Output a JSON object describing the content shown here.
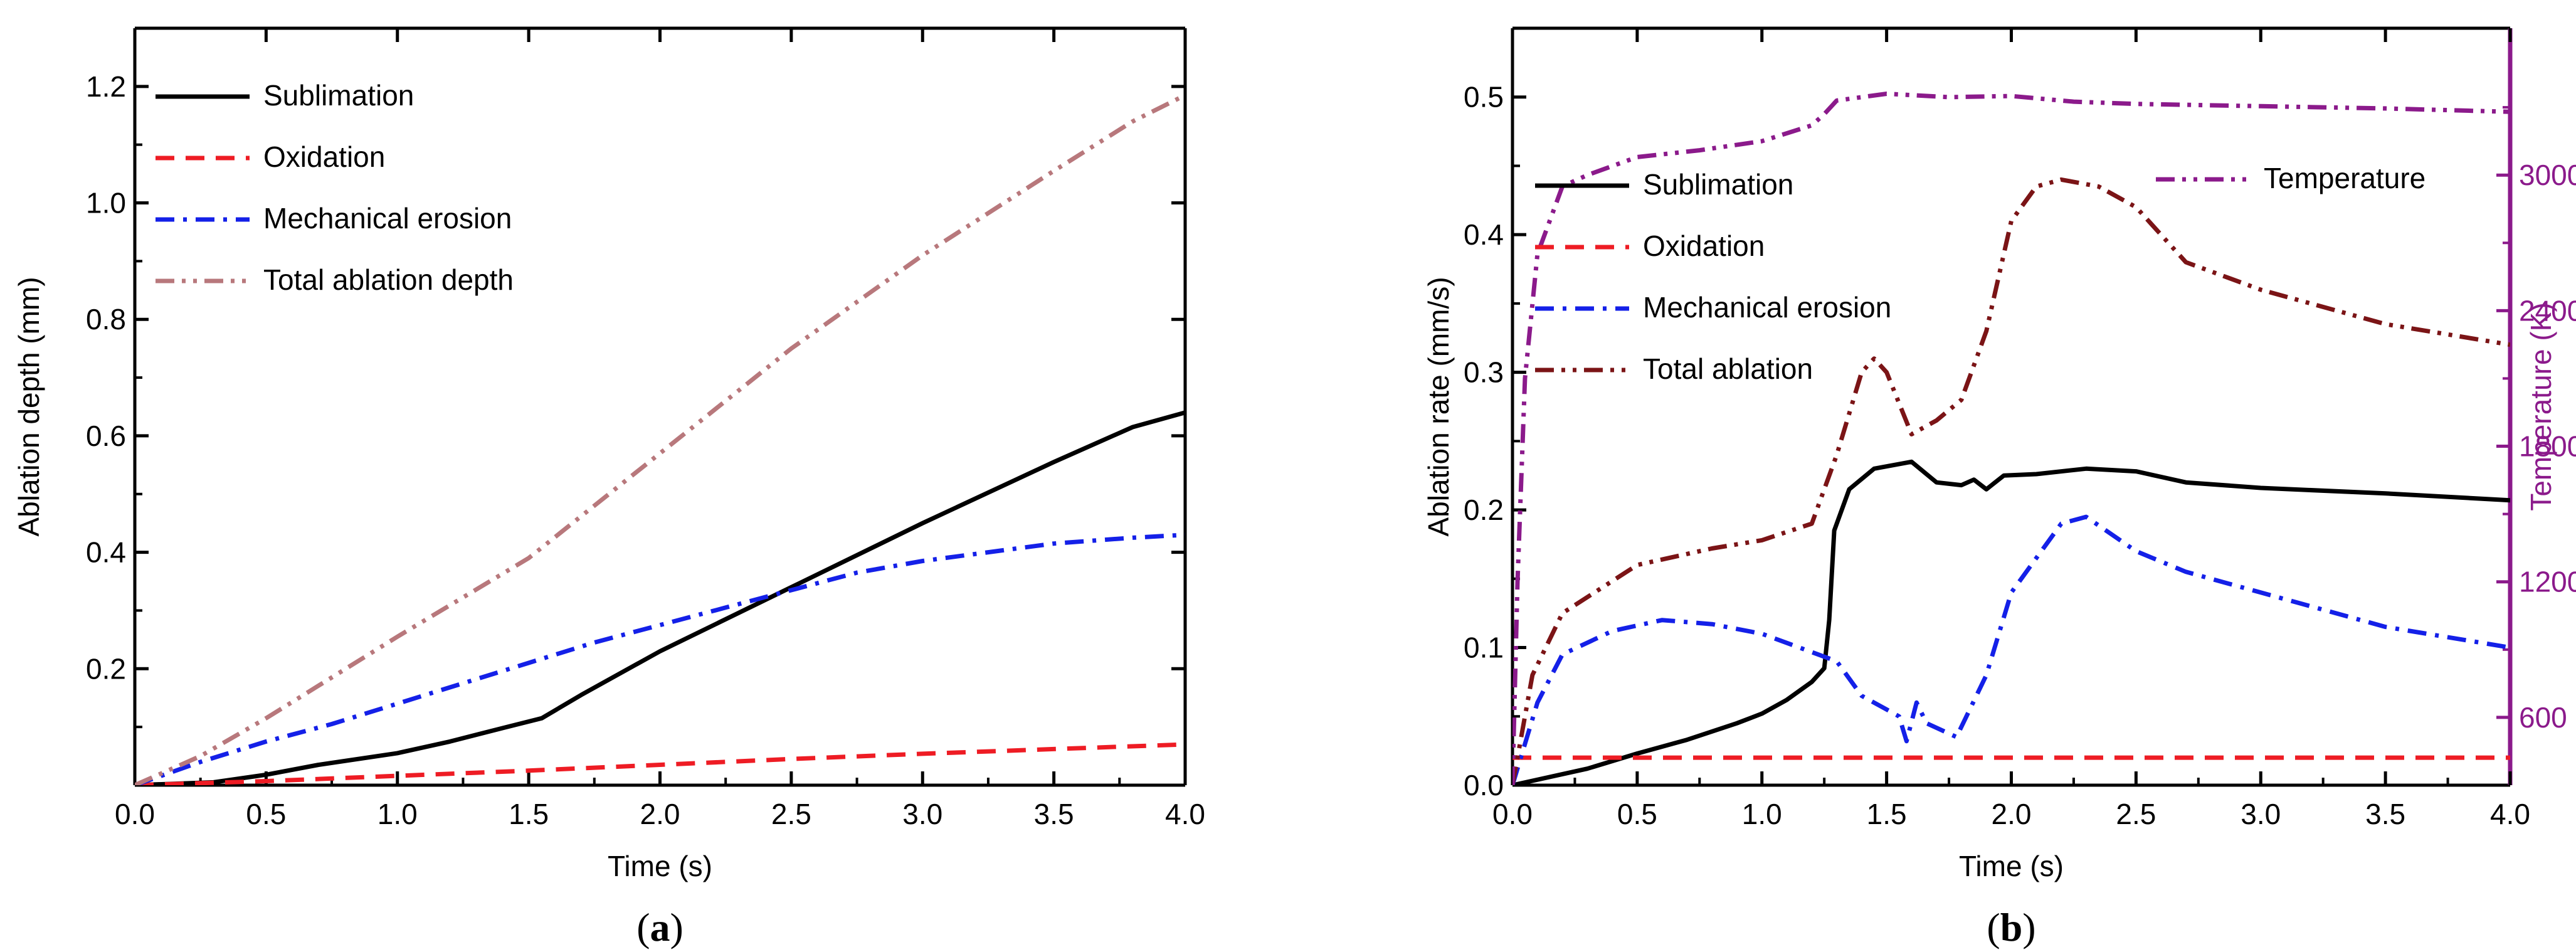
{
  "colors": {
    "axis": "#000000",
    "temperature_axis": "#8B1A8B"
  },
  "chart_data": [
    {
      "type": "line",
      "panel_label": "a",
      "title": "",
      "xlabel": "Time (s)",
      "ylabel": "Ablation depth (mm)",
      "xlim": [
        0,
        4
      ],
      "ylim": [
        0,
        1.3
      ],
      "xticks": [
        "0.0",
        "0.5",
        "1.0",
        "1.5",
        "2.0",
        "2.5",
        "3.0",
        "3.5",
        "4.0"
      ],
      "yticks": [
        "0.2",
        "0.4",
        "0.6",
        "0.8",
        "1.0",
        "1.2"
      ],
      "legend_position": "top-left",
      "series": [
        {
          "name": "Sublimation",
          "color": "#000000",
          "dash": "solid",
          "points": [
            [
              0,
              0
            ],
            [
              0.3,
              0.005
            ],
            [
              0.5,
              0.018
            ],
            [
              0.7,
              0.035
            ],
            [
              1.0,
              0.055
            ],
            [
              1.2,
              0.075
            ],
            [
              1.4,
              0.098
            ],
            [
              1.55,
              0.115
            ],
            [
              1.7,
              0.155
            ],
            [
              2.0,
              0.23
            ],
            [
              2.5,
              0.34
            ],
            [
              3.0,
              0.45
            ],
            [
              3.5,
              0.555
            ],
            [
              3.8,
              0.615
            ],
            [
              4.0,
              0.64
            ]
          ]
        },
        {
          "name": "Oxidation",
          "color": "#EE1C24",
          "dash": "dash",
          "points": [
            [
              0,
              0
            ],
            [
              0.5,
              0.007
            ],
            [
              1.0,
              0.016
            ],
            [
              1.5,
              0.025
            ],
            [
              2.0,
              0.035
            ],
            [
              2.5,
              0.045
            ],
            [
              3.0,
              0.054
            ],
            [
              3.5,
              0.062
            ],
            [
              4.0,
              0.07
            ]
          ]
        },
        {
          "name": "Mechanical erosion",
          "color": "#1420E8",
          "dash": "dashdot",
          "points": [
            [
              0,
              0
            ],
            [
              0.25,
              0.04
            ],
            [
              0.5,
              0.075
            ],
            [
              0.75,
              0.105
            ],
            [
              1.0,
              0.14
            ],
            [
              1.25,
              0.175
            ],
            [
              1.5,
              0.21
            ],
            [
              1.75,
              0.245
            ],
            [
              2.0,
              0.275
            ],
            [
              2.25,
              0.305
            ],
            [
              2.5,
              0.335
            ],
            [
              2.75,
              0.365
            ],
            [
              3.0,
              0.385
            ],
            [
              3.5,
              0.415
            ],
            [
              3.8,
              0.425
            ],
            [
              4.0,
              0.43
            ]
          ]
        },
        {
          "name": "Total ablation depth",
          "color": "#B8787C",
          "dash": "dashdotdot",
          "points": [
            [
              0,
              0
            ],
            [
              0.25,
              0.05
            ],
            [
              0.5,
              0.115
            ],
            [
              1.0,
              0.255
            ],
            [
              1.5,
              0.39
            ],
            [
              2.0,
              0.57
            ],
            [
              2.5,
              0.75
            ],
            [
              3.0,
              0.91
            ],
            [
              3.5,
              1.055
            ],
            [
              3.8,
              1.14
            ],
            [
              4.0,
              1.185
            ]
          ]
        }
      ]
    },
    {
      "type": "line",
      "panel_label": "b",
      "title": "",
      "xlabel": "Time (s)",
      "ylabel": "Ablation rate (mm/s)",
      "y2label": "Temperature (K)",
      "xlim": [
        0,
        4
      ],
      "ylim": [
        0,
        0.55
      ],
      "y2lim": [
        300,
        3650
      ],
      "xticks": [
        "0.0",
        "0.5",
        "1.0",
        "1.5",
        "2.0",
        "2.5",
        "3.0",
        "3.5",
        "4.0"
      ],
      "yticks": [
        "0.0",
        "0.1",
        "0.2",
        "0.3",
        "0.4",
        "0.5"
      ],
      "y2ticks": [
        "600",
        "1200",
        "1800",
        "2400",
        "3000"
      ],
      "legend_position": "top-left",
      "series": [
        {
          "name": "Sublimation",
          "axis": "left",
          "color": "#000000",
          "dash": "solid",
          "points": [
            [
              0,
              0
            ],
            [
              0.3,
              0.012
            ],
            [
              0.5,
              0.023
            ],
            [
              0.7,
              0.033
            ],
            [
              0.9,
              0.045
            ],
            [
              1.0,
              0.052
            ],
            [
              1.1,
              0.062
            ],
            [
              1.2,
              0.075
            ],
            [
              1.25,
              0.085
            ],
            [
              1.27,
              0.12
            ],
            [
              1.29,
              0.185
            ],
            [
              1.35,
              0.215
            ],
            [
              1.45,
              0.23
            ],
            [
              1.6,
              0.235
            ],
            [
              1.7,
              0.22
            ],
            [
              1.8,
              0.218
            ],
            [
              1.85,
              0.222
            ],
            [
              1.9,
              0.215
            ],
            [
              1.97,
              0.225
            ],
            [
              2.1,
              0.226
            ],
            [
              2.3,
              0.23
            ],
            [
              2.5,
              0.228
            ],
            [
              2.7,
              0.22
            ],
            [
              3.0,
              0.216
            ],
            [
              3.5,
              0.212
            ],
            [
              4.0,
              0.207
            ]
          ]
        },
        {
          "name": "Oxidation",
          "axis": "left",
          "color": "#EE1C24",
          "dash": "dash",
          "points": [
            [
              0,
              0.02
            ],
            [
              0.5,
              0.02
            ],
            [
              1.0,
              0.02
            ],
            [
              2.0,
              0.02
            ],
            [
              3.0,
              0.02
            ],
            [
              4.0,
              0.02
            ]
          ]
        },
        {
          "name": "Mechanical erosion",
          "axis": "left",
          "color": "#1420E8",
          "dash": "dashdot",
          "points": [
            [
              0,
              0
            ],
            [
              0.1,
              0.06
            ],
            [
              0.2,
              0.095
            ],
            [
              0.4,
              0.112
            ],
            [
              0.6,
              0.12
            ],
            [
              0.8,
              0.117
            ],
            [
              1.0,
              0.11
            ],
            [
              1.15,
              0.1
            ],
            [
              1.3,
              0.09
            ],
            [
              1.4,
              0.065
            ],
            [
              1.55,
              0.05
            ],
            [
              1.58,
              0.032
            ],
            [
              1.62,
              0.06
            ],
            [
              1.66,
              0.045
            ],
            [
              1.78,
              0.035
            ],
            [
              1.82,
              0.05
            ],
            [
              1.9,
              0.08
            ],
            [
              2.0,
              0.14
            ],
            [
              2.1,
              0.165
            ],
            [
              2.2,
              0.19
            ],
            [
              2.3,
              0.195
            ],
            [
              2.5,
              0.17
            ],
            [
              2.7,
              0.155
            ],
            [
              3.0,
              0.14
            ],
            [
              3.5,
              0.115
            ],
            [
              4.0,
              0.1
            ]
          ]
        },
        {
          "name": "Total ablation",
          "axis": "left",
          "color": "#7B1416",
          "dash": "dashdotdot",
          "points": [
            [
              0,
              0
            ],
            [
              0.08,
              0.08
            ],
            [
              0.2,
              0.125
            ],
            [
              0.5,
              0.16
            ],
            [
              0.8,
              0.172
            ],
            [
              1.0,
              0.178
            ],
            [
              1.2,
              0.19
            ],
            [
              1.3,
              0.24
            ],
            [
              1.4,
              0.3
            ],
            [
              1.45,
              0.31
            ],
            [
              1.5,
              0.3
            ],
            [
              1.6,
              0.255
            ],
            [
              1.7,
              0.265
            ],
            [
              1.8,
              0.28
            ],
            [
              1.9,
              0.33
            ],
            [
              2.0,
              0.41
            ],
            [
              2.1,
              0.435
            ],
            [
              2.2,
              0.44
            ],
            [
              2.35,
              0.435
            ],
            [
              2.5,
              0.42
            ],
            [
              2.7,
              0.38
            ],
            [
              3.0,
              0.36
            ],
            [
              3.5,
              0.335
            ],
            [
              4.0,
              0.32
            ]
          ]
        },
        {
          "name": "Temperature",
          "axis": "right",
          "color": "#8B1A8B",
          "dash": "dashdotdot",
          "points": [
            [
              0,
              300
            ],
            [
              0.02,
              1200
            ],
            [
              0.05,
              2100
            ],
            [
              0.1,
              2650
            ],
            [
              0.2,
              2950
            ],
            [
              0.3,
              3000
            ],
            [
              0.5,
              3080
            ],
            [
              0.75,
              3110
            ],
            [
              1.0,
              3150
            ],
            [
              1.2,
              3220
            ],
            [
              1.25,
              3270
            ],
            [
              1.3,
              3330
            ],
            [
              1.5,
              3360
            ],
            [
              1.75,
              3345
            ],
            [
              2.0,
              3350
            ],
            [
              2.25,
              3325
            ],
            [
              2.5,
              3315
            ],
            [
              3.0,
              3305
            ],
            [
              3.5,
              3295
            ],
            [
              4.0,
              3280
            ]
          ]
        }
      ]
    }
  ]
}
